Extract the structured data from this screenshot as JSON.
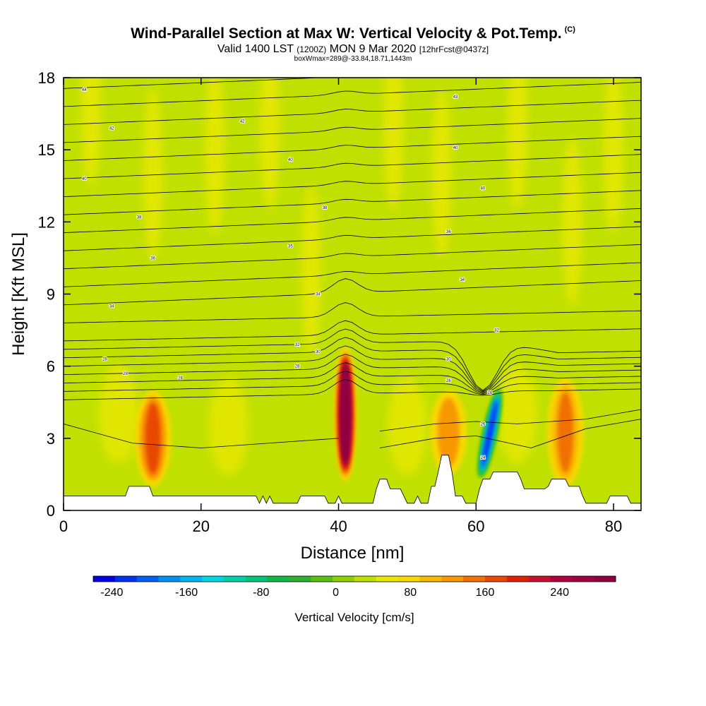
{
  "header": {
    "title": "Wind-Parallel Section at Max W: Vertical Velocity & Pot.Temp.",
    "copyright": "(C)",
    "valid_prefix": "Valid 1400 LST",
    "valid_utc": "(1200Z)",
    "valid_date": "MON 9 Mar 2020",
    "forecast_info": "[12hrFcst@0437z]",
    "box_info": "boxWmax=289@-33.84,18.71,1443m"
  },
  "chart_data": {
    "type": "heatmap",
    "xlabel": "Distance [nm]",
    "ylabel": "Height [Kft MSL]",
    "xlim": [
      0,
      84
    ],
    "ylim": [
      0,
      18
    ],
    "xticks": [
      0,
      20,
      40,
      60,
      80
    ],
    "yticks": [
      0,
      3,
      6,
      9,
      12,
      15,
      18
    ],
    "colorbar": {
      "label": "Vertical Velocity [cm/s]",
      "min": -260,
      "max": 300,
      "step": 20,
      "tick_values": [
        -240,
        -160,
        -80,
        0,
        80,
        160,
        240
      ],
      "tick_labels": [
        "-240",
        "-160",
        "-80",
        "0",
        "80",
        "160",
        "240"
      ],
      "colors": [
        "#0000e0",
        "#0030f0",
        "#0060f0",
        "#0090f0",
        "#00b4f0",
        "#00d8e0",
        "#00d0a8",
        "#00c478",
        "#10b848",
        "#30b030",
        "#58c010",
        "#90d000",
        "#c0e000",
        "#e8e800",
        "#f8d800",
        "#f8b800",
        "#f89800",
        "#f07000",
        "#e84800",
        "#e02000",
        "#c81030",
        "#b00040",
        "#a00040",
        "#900040"
      ]
    },
    "updrafts": [
      {
        "x": 41,
        "z_bottom": 1.2,
        "z_top": 6.8,
        "w_max": 289
      },
      {
        "x": 13,
        "z_bottom": 1.0,
        "z_top": 5.0,
        "w_max": 110
      },
      {
        "x": 73,
        "z_bottom": 1.0,
        "z_top": 5.5,
        "w_max": 90
      },
      {
        "x": 56,
        "z_bottom": 1.5,
        "z_top": 5.0,
        "w_max": 70
      }
    ],
    "downdrafts": [
      {
        "x": 62,
        "z_bottom": 1.2,
        "z_top": 5.2,
        "w_min": -240
      }
    ],
    "theta_contour_labels": [
      {
        "x": 3,
        "z": 17.5,
        "text": "44"
      },
      {
        "x": 57,
        "z": 17.2,
        "text": "43"
      },
      {
        "x": 7,
        "z": 15.9,
        "text": "42"
      },
      {
        "x": 26,
        "z": 16.2,
        "text": "42"
      },
      {
        "x": 57,
        "z": 15.1,
        "text": "40"
      },
      {
        "x": 3,
        "z": 13.8,
        "text": "40"
      },
      {
        "x": 33,
        "z": 14.6,
        "text": "40"
      },
      {
        "x": 61,
        "z": 13.4,
        "text": "40"
      },
      {
        "x": 38,
        "z": 12.6,
        "text": "38"
      },
      {
        "x": 11,
        "z": 12.2,
        "text": "38"
      },
      {
        "x": 56,
        "z": 11.6,
        "text": "36"
      },
      {
        "x": 33,
        "z": 11.0,
        "text": "35"
      },
      {
        "x": 13,
        "z": 10.5,
        "text": "36"
      },
      {
        "x": 58,
        "z": 9.6,
        "text": "34"
      },
      {
        "x": 37,
        "z": 9.0,
        "text": "34"
      },
      {
        "x": 7,
        "z": 8.5,
        "text": "34"
      },
      {
        "x": 63,
        "z": 7.5,
        "text": "32"
      },
      {
        "x": 34,
        "z": 6.9,
        "text": "32"
      },
      {
        "x": 37,
        "z": 6.6,
        "text": "30"
      },
      {
        "x": 6,
        "z": 6.3,
        "text": "28"
      },
      {
        "x": 56,
        "z": 6.3,
        "text": "30"
      },
      {
        "x": 34,
        "z": 6.0,
        "text": "28"
      },
      {
        "x": 9,
        "z": 5.7,
        "text": "28"
      },
      {
        "x": 17,
        "z": 5.5,
        "text": "28"
      },
      {
        "x": 56,
        "z": 5.4,
        "text": "26"
      },
      {
        "x": 62,
        "z": 4.9,
        "text": "28"
      },
      {
        "x": 61,
        "z": 3.6,
        "text": "26"
      },
      {
        "x": 61,
        "z": 2.2,
        "text": "24"
      }
    ],
    "terrain": [
      [
        0,
        0.6
      ],
      [
        9,
        0.6
      ],
      [
        9.5,
        1.0
      ],
      [
        12.5,
        1.0
      ],
      [
        13,
        0.6
      ],
      [
        28,
        0.6
      ],
      [
        28.5,
        0.3
      ],
      [
        29,
        0.6
      ],
      [
        29.5,
        0.3
      ],
      [
        30,
        0.6
      ],
      [
        30.5,
        0.3
      ],
      [
        34,
        0.3
      ],
      [
        34.5,
        0.6
      ],
      [
        38,
        0.6
      ],
      [
        38.5,
        0.3
      ],
      [
        39.5,
        0.3
      ],
      [
        40,
        0.6
      ],
      [
        40.5,
        0.3
      ],
      [
        45,
        0.3
      ],
      [
        45.5,
        0.9
      ],
      [
        46,
        1.3
      ],
      [
        47,
        1.3
      ],
      [
        47.5,
        0.9
      ],
      [
        49,
        0.9
      ],
      [
        49.5,
        0.6
      ],
      [
        50,
        0.3
      ],
      [
        51,
        0.3
      ],
      [
        51.5,
        0.6
      ],
      [
        52,
        0.3
      ],
      [
        53,
        0.3
      ],
      [
        53.5,
        1.0
      ],
      [
        54,
        1.0
      ],
      [
        54.5,
        1.6
      ],
      [
        55,
        2.3
      ],
      [
        56,
        2.3
      ],
      [
        56.5,
        1.6
      ],
      [
        57,
        0.6
      ],
      [
        58,
        0.6
      ],
      [
        58.5,
        0.3
      ],
      [
        60,
        0.3
      ],
      [
        60.5,
        0.9
      ],
      [
        61,
        1.3
      ],
      [
        62,
        1.3
      ],
      [
        62.5,
        1.6
      ],
      [
        66,
        1.6
      ],
      [
        66.5,
        1.3
      ],
      [
        67,
        0.9
      ],
      [
        70,
        0.9
      ],
      [
        70.5,
        1.0
      ],
      [
        71,
        1.3
      ],
      [
        73,
        1.3
      ],
      [
        73.5,
        1.0
      ],
      [
        75,
        1.0
      ],
      [
        75.5,
        0.6
      ],
      [
        76,
        0.3
      ],
      [
        79,
        0.3
      ],
      [
        79.5,
        0.6
      ],
      [
        82,
        0.6
      ],
      [
        82.5,
        0.3
      ],
      [
        84,
        0.3
      ]
    ]
  }
}
